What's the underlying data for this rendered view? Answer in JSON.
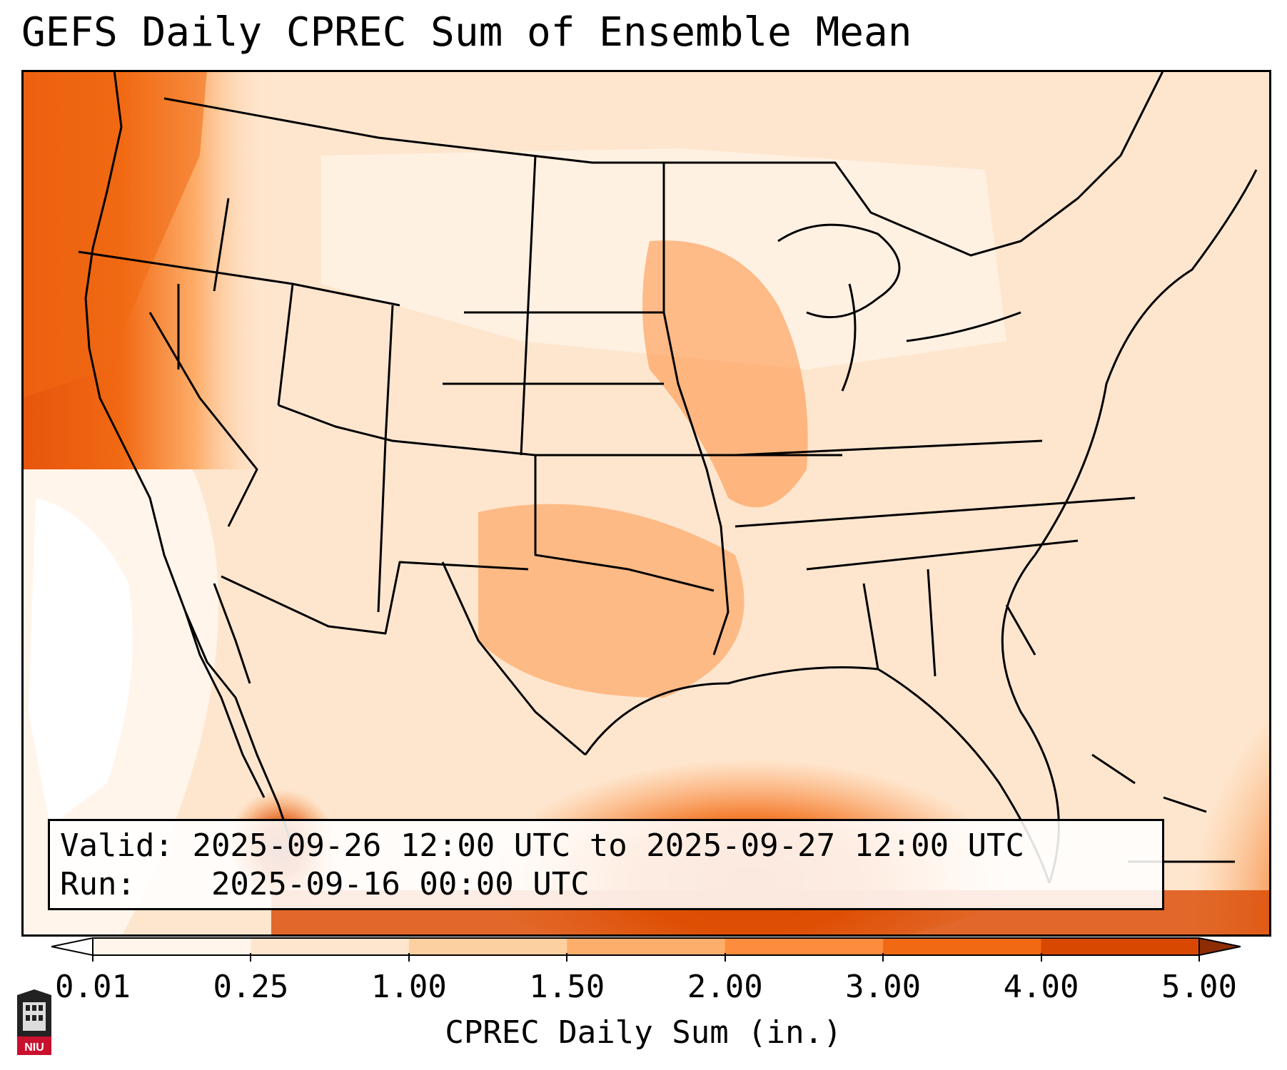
{
  "title": "GEFS Daily CPREC Sum of Ensemble Mean",
  "info": {
    "valid_label": "Valid:",
    "valid_value": "2025-09-26 12:00 UTC to 2025-09-27 12:00 UTC",
    "run_label": "Run:",
    "run_value": "2025-09-16 00:00 UTC"
  },
  "colorbar": {
    "label": "CPREC Daily Sum (in.)",
    "ticks": [
      "0.01",
      "0.25",
      "1.00",
      "1.50",
      "2.00",
      "3.00",
      "4.00",
      "5.00"
    ],
    "colors": [
      "#fff5eb",
      "#fee6ce",
      "#fdd0a2",
      "#fdae6b",
      "#fd8d3c",
      "#f16913",
      "#d94801",
      "#8c2d04"
    ],
    "under_color": "#ffffff",
    "over_color": "#8c2d04"
  },
  "logo": {
    "text": "NIU",
    "name": "niu-logo-icon"
  }
}
